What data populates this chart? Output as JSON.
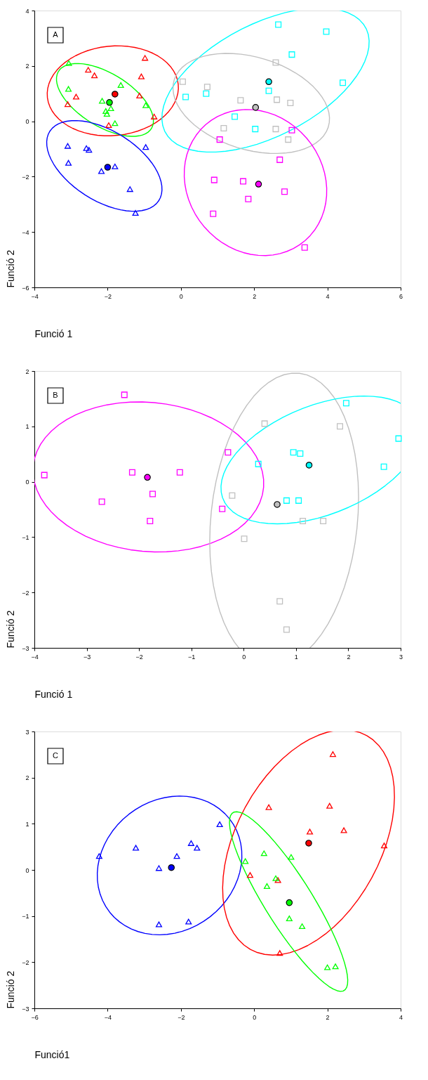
{
  "chart_data": [
    {
      "type": "scatter",
      "xlabel": "Funció 1",
      "ylabel": "Funció 2",
      "annotations": [
        "A"
      ],
      "xlim": [
        -4,
        6
      ],
      "ylim": [
        -6,
        4
      ],
      "xticks": [
        -4,
        -2,
        0,
        2,
        4,
        6
      ],
      "yticks": [
        -6,
        -4,
        -2,
        0,
        2,
        4
      ],
      "series": [
        {
          "marker": "triangle",
          "color": "#ff0000",
          "x": [
            -0.98,
            -2.53,
            -2.36,
            -1.08,
            -2.86,
            -1.13,
            -3.09,
            -0.73,
            -1.97
          ],
          "values": [
            2.29,
            1.86,
            1.66,
            1.62,
            0.89,
            0.93,
            0.62,
            0.17,
            -0.14
          ]
        },
        {
          "marker": "triangle",
          "color": "#00ff00",
          "x": [
            -3.06,
            -3.07,
            -1.64,
            -2.15,
            -1.91,
            -2.05,
            -2.02,
            -0.96,
            -1.8
          ],
          "values": [
            2.1,
            1.17,
            1.31,
            0.74,
            0.47,
            0.37,
            0.27,
            0.58,
            -0.07
          ]
        },
        {
          "marker": "triangle",
          "color": "#0000ff",
          "x": [
            -3.09,
            -2.58,
            -2.51,
            -0.96,
            -3.07,
            -2.17,
            -1.8,
            -1.39,
            -1.24
          ],
          "values": [
            -0.89,
            -0.97,
            -1.03,
            -0.93,
            -1.5,
            -1.8,
            -1.63,
            -2.45,
            -3.31
          ]
        },
        {
          "marker": "square",
          "color": "#00ffff",
          "x": [
            2.66,
            3.97,
            3.03,
            4.42,
            2.4,
            0.69,
            0.13,
            1.47,
            2.03
          ],
          "values": [
            3.49,
            3.24,
            2.41,
            1.39,
            1.1,
            1.0,
            0.88,
            0.17,
            -0.28
          ]
        },
        {
          "marker": "square",
          "color": "#c0c0c0",
          "x": [
            0.05,
            0.72,
            2.59,
            1.63,
            2.62,
            2.99,
            1.17,
            2.59,
            2.93
          ],
          "values": [
            1.43,
            1.24,
            2.12,
            0.76,
            0.78,
            0.66,
            -0.25,
            -0.28,
            -0.66
          ]
        },
        {
          "marker": "square",
          "color": "#ff00ff",
          "x": [
            3.03,
            1.06,
            2.7,
            0.91,
            1.7,
            2.83,
            1.84,
            0.88,
            3.38
          ],
          "values": [
            -0.32,
            -0.66,
            -1.39,
            -2.12,
            -2.17,
            -2.54,
            -2.81,
            -3.34,
            -4.56
          ]
        },
        {
          "marker": "circle",
          "color": "#ff0000",
          "x": [
            -1.8
          ],
          "values": [
            0.98
          ]
        },
        {
          "marker": "circle",
          "color": "#00ff00",
          "x": [
            -1.95
          ],
          "values": [
            0.68
          ]
        },
        {
          "marker": "circle",
          "color": "#0000ff",
          "x": [
            -2.0
          ],
          "values": [
            -1.66
          ]
        },
        {
          "marker": "circle",
          "color": "#00ffff",
          "x": [
            2.4
          ],
          "values": [
            1.43
          ]
        },
        {
          "marker": "circle",
          "color": "#c0c0c0",
          "x": [
            2.04
          ],
          "values": [
            0.5
          ]
        },
        {
          "marker": "circle",
          "color": "#ff00ff",
          "x": [
            2.12
          ],
          "values": [
            -2.27
          ]
        }
      ]
    },
    {
      "type": "scatter",
      "xlabel": "Funció 1",
      "ylabel": "Funció 2",
      "annotations": [
        "B"
      ],
      "xlim": [
        -4,
        3
      ],
      "ylim": [
        -3,
        2
      ],
      "xticks": [
        -4,
        -3,
        -2,
        -1,
        0,
        1,
        2,
        3
      ],
      "yticks": [
        -3,
        -2,
        -1,
        0,
        1,
        2
      ],
      "series": [
        {
          "marker": "square",
          "color": "#ff00ff",
          "x": [
            -2.28,
            -3.81,
            -2.13,
            -1.22,
            -1.74,
            -2.71,
            -1.79,
            -0.3,
            -0.41
          ],
          "values": [
            1.57,
            0.12,
            0.17,
            0.17,
            -0.22,
            -0.36,
            -0.71,
            0.53,
            -0.49
          ]
        },
        {
          "marker": "square",
          "color": "#c0c0c0",
          "x": [
            0.4,
            1.84,
            -0.22,
            1.13,
            1.52,
            0.01,
            0.69,
            0.82
          ],
          "values": [
            1.05,
            1.0,
            -0.25,
            -0.71,
            -0.71,
            -1.03,
            -2.16,
            -2.67
          ]
        },
        {
          "marker": "square",
          "color": "#00ffff",
          "x": [
            1.96,
            2.96,
            0.95,
            1.08,
            0.28,
            2.68,
            0.82,
            1.05
          ],
          "values": [
            1.42,
            0.78,
            0.53,
            0.51,
            0.32,
            0.27,
            -0.34,
            -0.34
          ]
        },
        {
          "marker": "circle",
          "color": "#ff00ff",
          "x": [
            -1.84
          ],
          "values": [
            0.08
          ]
        },
        {
          "marker": "circle",
          "color": "#00ffff",
          "x": [
            1.25
          ],
          "values": [
            0.3
          ]
        },
        {
          "marker": "circle",
          "color": "#c0c0c0",
          "x": [
            0.64
          ],
          "values": [
            -0.41
          ]
        }
      ]
    },
    {
      "type": "scatter",
      "xlabel": "Funció1",
      "ylabel": "Funció 2",
      "annotations": [
        "C"
      ],
      "xlim": [
        -6,
        4
      ],
      "ylim": [
        -3,
        3
      ],
      "xticks": [
        -6,
        -4,
        -2,
        0,
        2,
        4
      ],
      "yticks": [
        -3,
        -2,
        -1,
        0,
        1,
        2,
        3
      ],
      "series": [
        {
          "marker": "triangle",
          "color": "#0000ff",
          "x": [
            -0.94,
            -4.23,
            -3.23,
            -1.72,
            -1.56,
            -2.11,
            -2.6,
            -2.6,
            -1.79
          ],
          "values": [
            0.99,
            0.3,
            0.48,
            0.58,
            0.48,
            0.3,
            0.04,
            -1.18,
            -1.12
          ]
        },
        {
          "marker": "triangle",
          "color": "#ff0000",
          "x": [
            2.15,
            0.4,
            2.06,
            1.52,
            2.45,
            3.55,
            -0.11,
            0.65,
            0.7
          ],
          "values": [
            2.51,
            1.36,
            1.39,
            0.83,
            0.86,
            0.53,
            -0.11,
            -0.22,
            -1.8
          ]
        },
        {
          "marker": "triangle",
          "color": "#00ff00",
          "x": [
            -0.24,
            0.27,
            1.01,
            0.59,
            0.35,
            0.96,
            1.31,
            2.0,
            2.22
          ],
          "values": [
            0.19,
            0.36,
            0.28,
            -0.18,
            -0.35,
            -1.05,
            -1.22,
            -2.11,
            -2.09
          ]
        },
        {
          "marker": "circle",
          "color": "#0000ff",
          "x": [
            -2.26
          ],
          "values": [
            0.05
          ]
        },
        {
          "marker": "circle",
          "color": "#ff0000",
          "x": [
            1.49
          ],
          "values": [
            0.58
          ]
        },
        {
          "marker": "circle",
          "color": "#00ff00",
          "x": [
            0.96
          ],
          "values": [
            -0.71
          ]
        }
      ]
    }
  ]
}
